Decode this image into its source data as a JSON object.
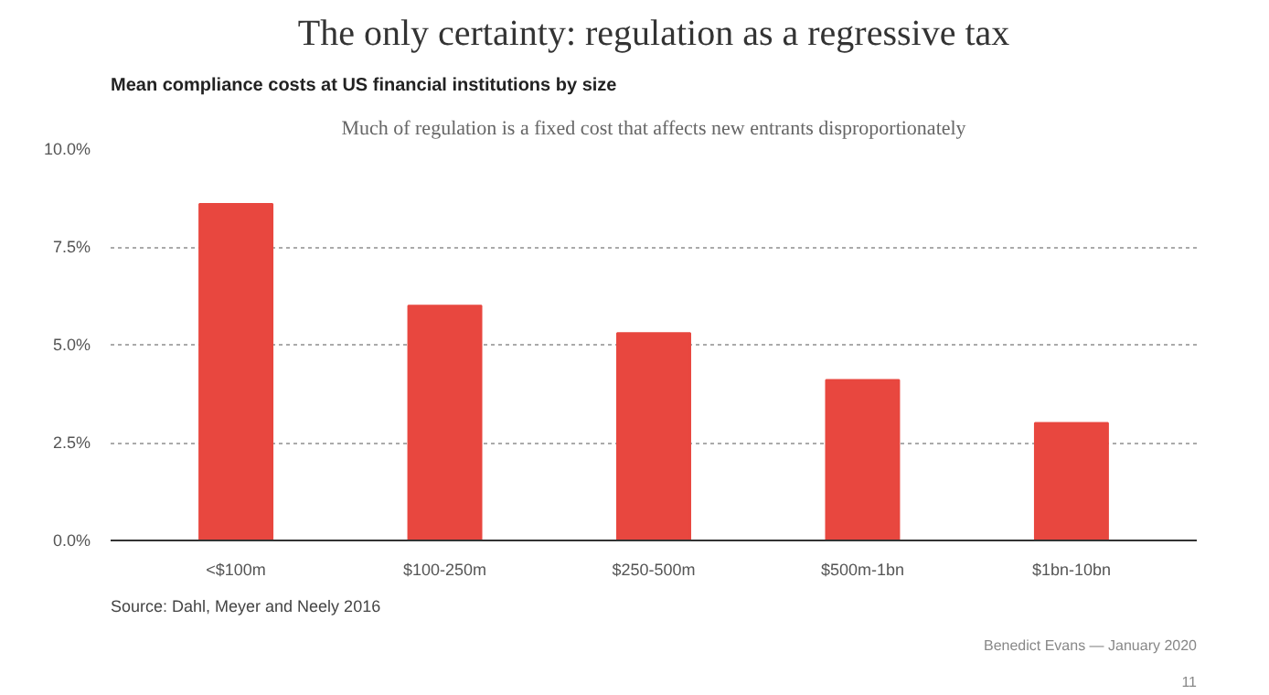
{
  "chart_data": {
    "type": "bar",
    "title": "The only certainty: regulation as a regressive tax",
    "subtitle": "Much of regulation is a fixed cost that affects new entrants disproportionately",
    "annotations": [
      "Mean compliance costs at US financial institutions by size",
      "Source: Dahl, Meyer and Neely 2016",
      "Benedict Evans — January 2020",
      "11"
    ],
    "categories": [
      "<$100m",
      "$100-250m",
      "$250-500m",
      "$500m-1bn",
      "$1bn-10bn"
    ],
    "values": [
      8.6,
      6.0,
      5.3,
      4.1,
      3.0
    ],
    "color": "#e8473f",
    "ylim": [
      0,
      10
    ],
    "yticks": [
      {
        "value": 0,
        "label": "0.0%"
      },
      {
        "value": 2.5,
        "label": "2.5%"
      },
      {
        "value": 5,
        "label": "5.0%"
      },
      {
        "value": 7.5,
        "label": "7.5%"
      },
      {
        "value": 10,
        "label": "10.0%"
      }
    ],
    "grid": "y"
  }
}
